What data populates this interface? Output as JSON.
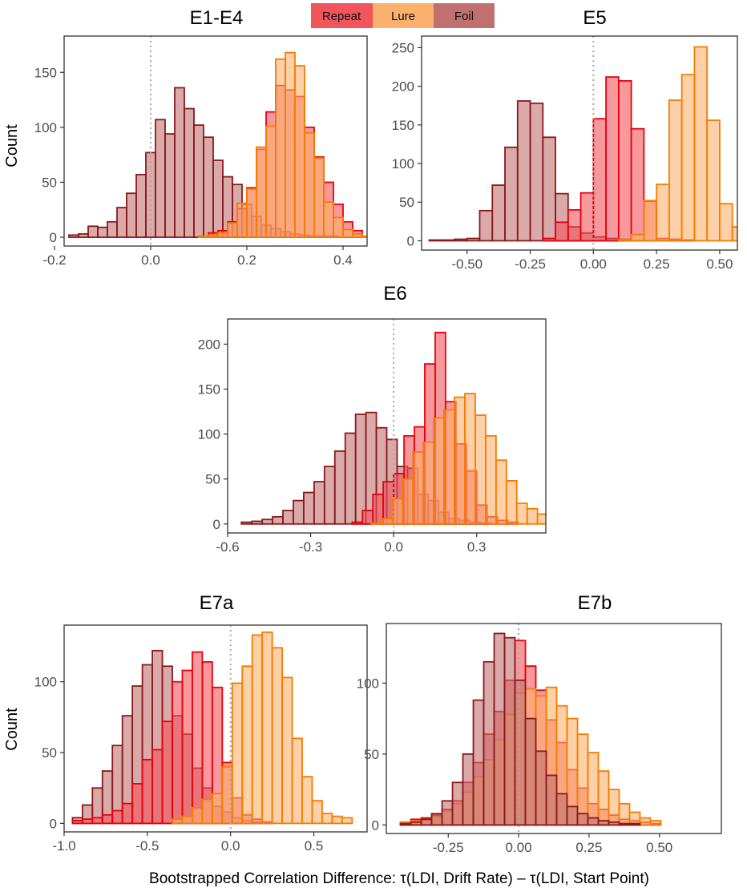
{
  "legend": [
    {
      "label": "Repeat",
      "fill": "#F2545B",
      "stroke": "#E8000B"
    },
    {
      "label": "Lure",
      "fill": "#FBB06C",
      "stroke": "#F57C00"
    },
    {
      "label": "Foil",
      "fill": "#C17070",
      "stroke": "#8B1A1A"
    }
  ],
  "x_axis_label": "Bootstrapped Correlation Difference: τ(LDI, Drift Rate) – τ(LDI, Start Point)",
  "y_axis_label": "Count",
  "chart_data": [
    {
      "type": "histogram",
      "title": "E1-E4",
      "xlim": [
        -0.18,
        0.45
      ],
      "ylim": [
        -8,
        183
      ],
      "xticks": [
        -0.2,
        0.0,
        0.2,
        0.4
      ],
      "xtick_labels": [
        "-0.2",
        "0.0",
        "0.2",
        "0.4"
      ],
      "yticks": [
        0,
        50,
        100,
        150
      ],
      "ytick_labels": [
        "0",
        "50",
        "100",
        "150"
      ],
      "vline": 0,
      "ylabel": "Count",
      "series": [
        {
          "name": "Foil",
          "start": -0.17,
          "binwidth": 0.02,
          "values": [
            2,
            3,
            10,
            9,
            14,
            27,
            40,
            57,
            77,
            107,
            94,
            136,
            117,
            102,
            91,
            70,
            55,
            48,
            30,
            19,
            11,
            8,
            5,
            3,
            2,
            1,
            1,
            1,
            0,
            0,
            0,
            0
          ]
        },
        {
          "name": "Repeat",
          "start": 0.12,
          "binwidth": 0.02,
          "values": [
            4,
            6,
            14,
            26,
            45,
            80,
            114,
            138,
            134,
            128,
            100,
            73,
            50,
            30,
            14,
            6
          ]
        },
        {
          "name": "Lure",
          "start": 0.1,
          "binwidth": 0.02,
          "values": [
            1,
            2,
            4,
            13,
            31,
            44,
            82,
            101,
            162,
            168,
            156,
            95,
            72,
            32,
            18,
            7,
            3,
            1
          ]
        }
      ]
    },
    {
      "type": "histogram",
      "title": "E5",
      "xlim": [
        -0.68,
        0.57
      ],
      "ylim": [
        -12,
        265
      ],
      "xticks": [
        -0.5,
        -0.25,
        0.0,
        0.25,
        0.5
      ],
      "xtick_labels": [
        "-0.50",
        "-0.25",
        "0.00",
        "0.25",
        "0.50"
      ],
      "yticks": [
        0,
        50,
        100,
        150,
        200,
        250
      ],
      "ytick_labels": [
        "0",
        "50",
        "100",
        "150",
        "200",
        "250"
      ],
      "vline": 0,
      "series": [
        {
          "name": "Foil",
          "start": -0.65,
          "binwidth": 0.05,
          "values": [
            1,
            1,
            2,
            3,
            39,
            72,
            121,
            181,
            178,
            134,
            61,
            18,
            10,
            5,
            3,
            2
          ]
        },
        {
          "name": "Repeat",
          "start": -0.2,
          "binwidth": 0.05,
          "values": [
            3,
            24,
            40,
            62,
            158,
            212,
            207,
            145,
            51,
            3,
            2,
            1
          ]
        },
        {
          "name": "Lure",
          "start": 0.1,
          "binwidth": 0.05,
          "values": [
            2,
            8,
            52,
            73,
            182,
            215,
            251,
            156,
            48,
            18,
            14
          ]
        }
      ]
    },
    {
      "type": "histogram",
      "title": "E6",
      "xlim": [
        -0.6,
        0.55
      ],
      "ylim": [
        -10,
        228
      ],
      "xticks": [
        -0.6,
        -0.3,
        0.0,
        0.3
      ],
      "xtick_labels": [
        "-0.6",
        "-0.3",
        "0.0",
        "0.3"
      ],
      "yticks": [
        0,
        50,
        100,
        150,
        200
      ],
      "ytick_labels": [
        "0",
        "50",
        "100",
        "150",
        "200"
      ],
      "vline": 0,
      "series": [
        {
          "name": "Foil",
          "start": -0.55,
          "binwidth": 0.0375,
          "values": [
            2,
            3,
            5,
            8,
            15,
            26,
            35,
            47,
            64,
            81,
            101,
            122,
            124,
            107,
            94,
            64,
            62,
            33,
            26,
            13,
            6,
            4,
            2,
            1
          ]
        },
        {
          "name": "Repeat",
          "start": -0.15,
          "binwidth": 0.0375,
          "values": [
            2,
            15,
            33,
            47,
            56,
            98,
            108,
            178,
            213,
            136,
            89,
            59,
            21,
            8,
            4,
            2
          ]
        },
        {
          "name": "Lure",
          "start": -0.08,
          "binwidth": 0.0375,
          "values": [
            1,
            6,
            28,
            50,
            80,
            91,
            118,
            127,
            141,
            145,
            121,
            98,
            71,
            48,
            23,
            17,
            11,
            8,
            2
          ]
        }
      ]
    },
    {
      "type": "histogram",
      "title": "E7a",
      "xlim": [
        -1.0,
        0.82
      ],
      "ylim": [
        -6,
        140
      ],
      "xticks": [
        -1.0,
        -0.5,
        0.0,
        0.5
      ],
      "xtick_labels": [
        "-1.0",
        "-0.5",
        "0.0",
        "0.5"
      ],
      "yticks": [
        0,
        50,
        100
      ],
      "ytick_labels": [
        "0",
        "50",
        "100"
      ],
      "vline": 0,
      "ylabel": "Count",
      "series": [
        {
          "name": "Foil",
          "start": -0.95,
          "binwidth": 0.06,
          "values": [
            4,
            13,
            25,
            37,
            55,
            76,
            97,
            112,
            122,
            111,
            76,
            63,
            39,
            25,
            12,
            8,
            4,
            2,
            1
          ]
        },
        {
          "name": "Repeat",
          "start": -0.95,
          "binwidth": 0.06,
          "values": [
            2,
            3,
            4,
            6,
            9,
            14,
            28,
            45,
            52,
            72,
            100,
            108,
            121,
            114,
            96,
            43,
            18,
            6,
            3,
            1
          ]
        },
        {
          "name": "Lure",
          "start": -0.35,
          "binwidth": 0.06,
          "values": [
            3,
            5,
            11,
            17,
            21,
            40,
            99,
            111,
            133,
            135,
            124,
            103,
            60,
            33,
            16,
            7,
            5,
            4
          ]
        }
      ]
    },
    {
      "type": "histogram",
      "title": "E7b",
      "xlim": [
        -0.47,
        0.72
      ],
      "ylim": [
        -6,
        142
      ],
      "xticks": [
        -0.25,
        0.0,
        0.25,
        0.5
      ],
      "xtick_labels": [
        "-0.25",
        "0.00",
        "0.25",
        "0.50"
      ],
      "yticks": [
        0,
        50,
        100
      ],
      "ytick_labels": [
        "0",
        "50",
        "100"
      ],
      "vline": 0,
      "series": [
        {
          "name": "Repeat",
          "start": -0.42,
          "binwidth": 0.037,
          "values": [
            2,
            4,
            5,
            7,
            11,
            17,
            30,
            44,
            64,
            80,
            102,
            130,
            112,
            95,
            74,
            58,
            39,
            26,
            15,
            11,
            7,
            4,
            3,
            2,
            1
          ]
        },
        {
          "name": "Lure",
          "start": -0.42,
          "binwidth": 0.037,
          "values": [
            2,
            3,
            4,
            6,
            10,
            15,
            23,
            34,
            46,
            60,
            78,
            93,
            96,
            91,
            97,
            84,
            75,
            64,
            51,
            38,
            25,
            15,
            9,
            5,
            3
          ]
        },
        {
          "name": "Foil",
          "start": -0.42,
          "binwidth": 0.037,
          "values": [
            1,
            2,
            4,
            8,
            17,
            30,
            50,
            88,
            115,
            135,
            132,
            102,
            75,
            52,
            35,
            22,
            13,
            8,
            5,
            3,
            2,
            1,
            1,
            0,
            0
          ]
        }
      ]
    }
  ]
}
